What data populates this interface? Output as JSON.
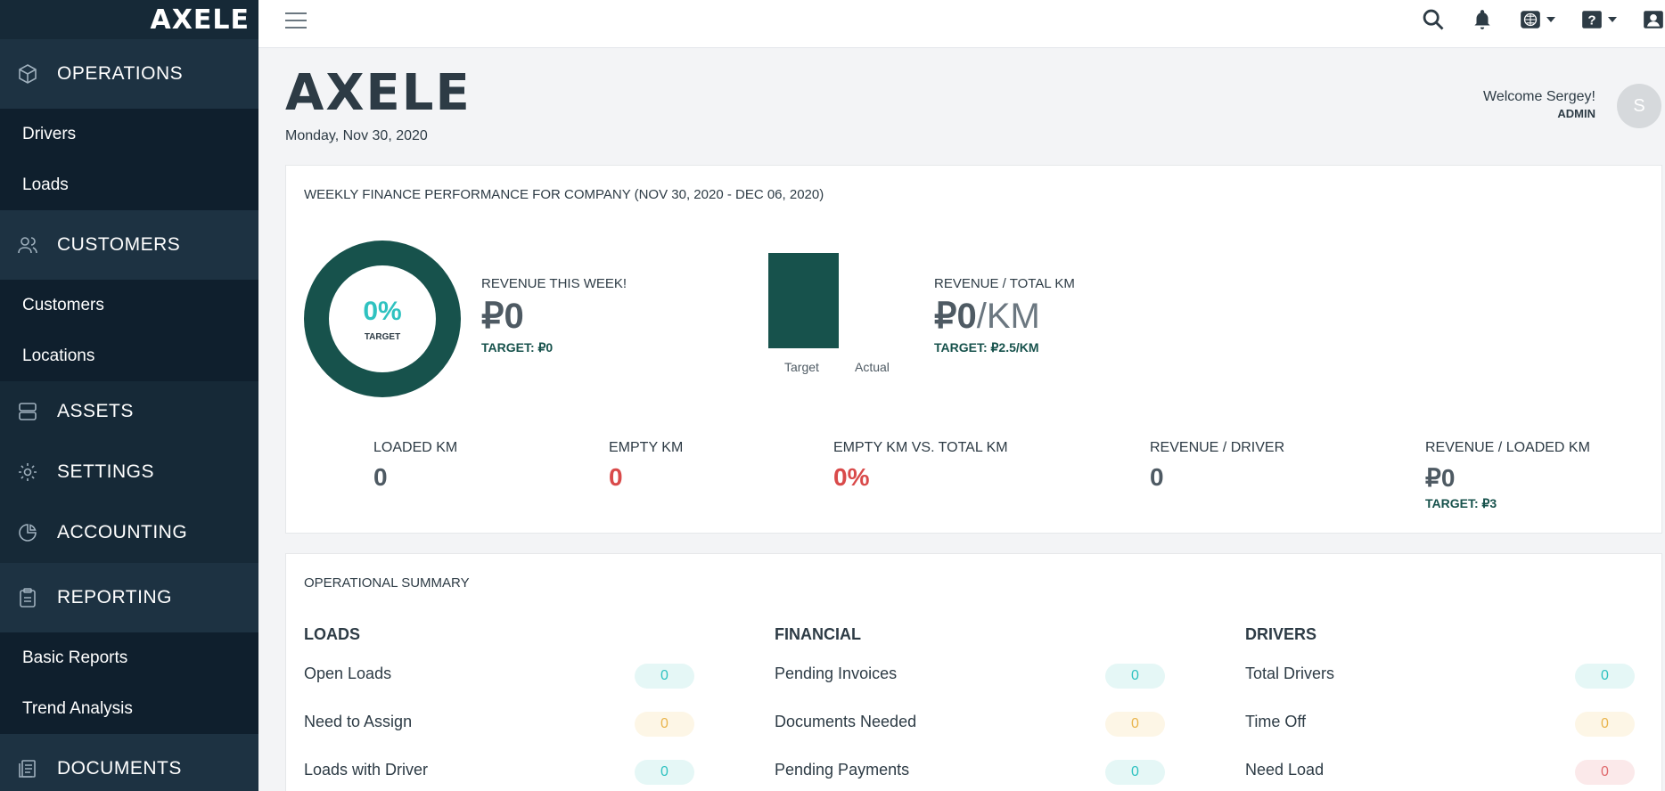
{
  "app": {
    "logo": "AXELE"
  },
  "sidebar": {
    "sections": [
      {
        "label": "OPERATIONS",
        "icon": "cube-icon",
        "items": [
          "Drivers",
          "Loads"
        ]
      },
      {
        "label": "CUSTOMERS",
        "icon": "users-icon",
        "items": [
          "Customers",
          "Locations"
        ]
      },
      {
        "label": "ASSETS",
        "icon": "server-icon",
        "items": []
      },
      {
        "label": "SETTINGS",
        "icon": "gear-icon",
        "items": []
      },
      {
        "label": "ACCOUNTING",
        "icon": "pie-chart-icon",
        "items": []
      },
      {
        "label": "REPORTING",
        "icon": "clipboard-icon",
        "items": [
          "Basic Reports",
          "Trend Analysis"
        ]
      },
      {
        "label": "DOCUMENTS",
        "icon": "documents-icon",
        "items": []
      }
    ]
  },
  "header": {
    "brand": "AXELE",
    "date": "Monday, Nov 30, 2020",
    "welcome": "Welcome Sergey!",
    "role": "ADMIN",
    "avatar_initial": "S"
  },
  "weekly": {
    "title": "WEEKLY FINANCE PERFORMANCE FOR COMPANY (NOV 30, 2020 - DEC 06, 2020)",
    "donut_pct": "0%",
    "donut_label": "TARGET",
    "revenue_label": "REVENUE THIS WEEK!",
    "revenue_value": "₽0",
    "revenue_target": "TARGET: ₽0",
    "bar_target_label": "Target",
    "bar_actual_label": "Actual",
    "rev_km_label": "REVENUE / TOTAL KM",
    "rev_km_value": "₽0",
    "rev_km_unit": "/KM",
    "rev_km_target": "TARGET: ₽2.5/KM",
    "stats": [
      {
        "label": "LOADED KM",
        "value": "0"
      },
      {
        "label": "EMPTY KM",
        "value": "0"
      },
      {
        "label": "EMPTY KM VS. TOTAL KM",
        "value": "0%"
      },
      {
        "label": "REVENUE / DRIVER",
        "value": "0"
      },
      {
        "label": "REVENUE / LOADED KM",
        "value": "₽0",
        "target": "TARGET: ₽3"
      }
    ]
  },
  "summary": {
    "title": "OPERATIONAL SUMMARY",
    "columns": [
      {
        "heading": "LOADS",
        "rows": [
          {
            "label": "Open Loads",
            "value": "0"
          },
          {
            "label": "Need to Assign",
            "value": "0"
          },
          {
            "label": "Loads with Driver",
            "value": "0"
          }
        ]
      },
      {
        "heading": "FINANCIAL",
        "rows": [
          {
            "label": "Pending Invoices",
            "value": "0"
          },
          {
            "label": "Documents Needed",
            "value": "0"
          },
          {
            "label": "Pending Payments",
            "value": "0"
          }
        ]
      },
      {
        "heading": "DRIVERS",
        "rows": [
          {
            "label": "Total Drivers",
            "value": "0"
          },
          {
            "label": "Time Off",
            "value": "0"
          },
          {
            "label": "Need Load",
            "value": "0"
          }
        ]
      }
    ]
  },
  "colors": {
    "accent": "#17524c",
    "teal": "#2fc2c0",
    "sidebar": "#162937",
    "danger": "#d94a4a"
  }
}
